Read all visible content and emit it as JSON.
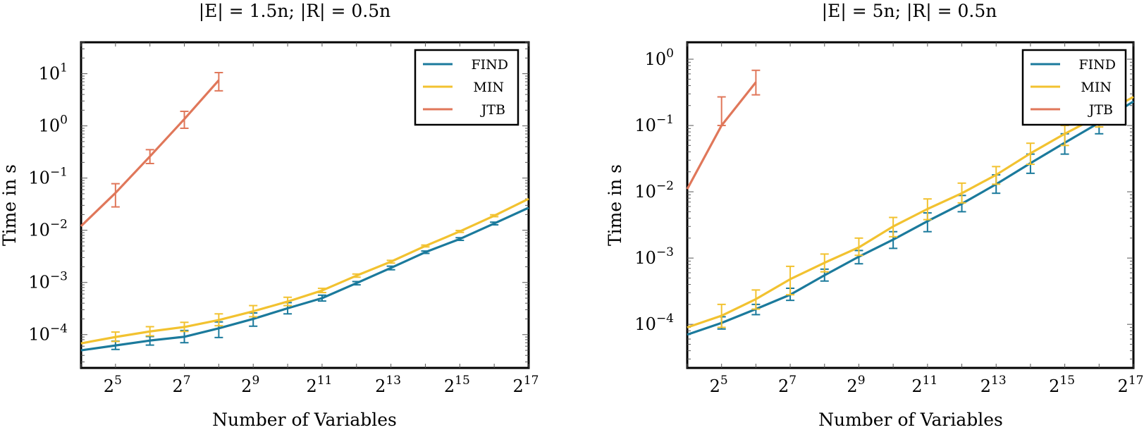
{
  "colors": {
    "FIND": "#1b7a9c",
    "MIN": "#f2c230",
    "JTB": "#e0775a"
  },
  "chart_data": [
    {
      "type": "line",
      "title": "|E| = 1.5n; |R| = 0.5n",
      "xlabel": "Number of Variables",
      "ylabel": "Time in s",
      "x_scale": "log2",
      "y_scale": "log10",
      "xlim_exp": [
        4,
        17
      ],
      "ylim": [
        2.3e-05,
        40
      ],
      "xticks_exp": [
        5,
        7,
        9,
        11,
        13,
        15,
        17
      ],
      "yticks": [
        {
          "exp": -4,
          "value": 0.0001
        },
        {
          "exp": -3,
          "value": 0.001
        },
        {
          "exp": -2,
          "value": 0.01
        },
        {
          "exp": -1,
          "value": 0.1
        },
        {
          "exp": 0,
          "value": 1
        },
        {
          "exp": 1,
          "value": 10
        }
      ],
      "legend": [
        "FIND",
        "MIN",
        "JTB"
      ],
      "legend_position": "top-right",
      "series": [
        {
          "name": "FIND",
          "x_exp": [
            4,
            5,
            6,
            7,
            8,
            9,
            10,
            11,
            12,
            13,
            14,
            15,
            16,
            17
          ],
          "values": [
            5e-05,
            6.2e-05,
            7.7e-05,
            9.1e-05,
            0.000132,
            0.0002,
            0.00032,
            0.0005,
            0.00097,
            0.0019,
            0.0038,
            0.0068,
            0.0135,
            0.027
          ],
          "err_low": [
            null,
            5.2e-05,
            6.3e-05,
            7e-05,
            8.8e-05,
            0.000145,
            0.00025,
            0.00044,
            0.0009,
            0.00175,
            0.0036,
            0.0064,
            0.0127,
            null
          ],
          "err_high": [
            null,
            7.5e-05,
            9.2e-05,
            0.00012,
            0.000175,
            0.00026,
            0.00041,
            0.00057,
            0.00104,
            0.00205,
            0.004,
            0.0072,
            0.0143,
            null
          ]
        },
        {
          "name": "MIN",
          "x_exp": [
            4,
            5,
            6,
            7,
            8,
            9,
            10,
            11,
            12,
            13,
            14,
            15,
            16,
            17
          ],
          "values": [
            6.8e-05,
            9e-05,
            0.000115,
            0.00014,
            0.00019,
            0.00028,
            0.00043,
            0.0007,
            0.00135,
            0.0025,
            0.005,
            0.0095,
            0.019,
            0.04
          ],
          "err_low": [
            null,
            7.4e-05,
            9.5e-05,
            0.000115,
            0.000148,
            0.00022,
            0.00036,
            0.00064,
            0.00126,
            0.00235,
            0.0048,
            0.0091,
            0.0182,
            null
          ],
          "err_high": [
            null,
            0.000112,
            0.000142,
            0.000172,
            0.00025,
            0.00036,
            0.00052,
            0.00077,
            0.00145,
            0.00265,
            0.0052,
            0.0099,
            0.0198,
            null
          ]
        },
        {
          "name": "JTB",
          "x_exp": [
            4,
            5,
            6,
            7,
            8
          ],
          "values": [
            0.012,
            0.052,
            0.26,
            1.35,
            7.5
          ],
          "err_low": [
            null,
            0.028,
            0.19,
            0.9,
            4.7
          ],
          "err_high": [
            null,
            0.078,
            0.35,
            1.9,
            10.5
          ]
        }
      ]
    },
    {
      "type": "line",
      "title": "|E| = 5n; |R| = 0.5n",
      "xlabel": "Number of Variables",
      "ylabel": "Time in s",
      "x_scale": "log2",
      "y_scale": "log10",
      "xlim_exp": [
        4,
        17
      ],
      "ylim": [
        2.2e-05,
        1.8
      ],
      "xticks_exp": [
        5,
        7,
        9,
        11,
        13,
        15,
        17
      ],
      "yticks": [
        {
          "exp": -4,
          "value": 0.0001
        },
        {
          "exp": -3,
          "value": 0.001
        },
        {
          "exp": -2,
          "value": 0.01
        },
        {
          "exp": -1,
          "value": 0.1
        },
        {
          "exp": 0,
          "value": 1
        }
      ],
      "legend": [
        "FIND",
        "MIN",
        "JTB"
      ],
      "legend_position": "top-right",
      "series": [
        {
          "name": "FIND",
          "x_exp": [
            4,
            5,
            6,
            7,
            8,
            9,
            10,
            11,
            12,
            13,
            14,
            15,
            16,
            17
          ],
          "values": [
            7e-05,
            0.000105,
            0.00017,
            0.00028,
            0.00055,
            0.00105,
            0.0019,
            0.0036,
            0.0066,
            0.013,
            0.027,
            0.055,
            0.11,
            0.23
          ],
          "err_low": [
            null,
            8.5e-05,
            0.00014,
            0.00023,
            0.00045,
            0.00082,
            0.0014,
            0.0025,
            0.005,
            0.0095,
            0.019,
            0.037,
            0.075,
            null
          ],
          "err_high": [
            null,
            0.00013,
            0.0002,
            0.00035,
            0.00068,
            0.0013,
            0.0025,
            0.0048,
            0.0088,
            0.018,
            0.037,
            0.075,
            0.15,
            null
          ]
        },
        {
          "name": "MIN",
          "x_exp": [
            4,
            5,
            6,
            7,
            8,
            9,
            10,
            11,
            12,
            13,
            14,
            15,
            16,
            17
          ],
          "values": [
            9e-05,
            0.000135,
            0.00024,
            0.00048,
            0.00085,
            0.00145,
            0.003,
            0.0055,
            0.0095,
            0.018,
            0.038,
            0.075,
            0.14,
            0.27
          ],
          "err_low": [
            null,
            9e-05,
            0.00017,
            0.00028,
            0.00062,
            0.0011,
            0.0021,
            0.0038,
            0.0068,
            0.013,
            0.026,
            0.05,
            0.095,
            null
          ],
          "err_high": [
            null,
            0.0002,
            0.00033,
            0.00075,
            0.00115,
            0.002,
            0.0041,
            0.0078,
            0.0135,
            0.024,
            0.054,
            0.1,
            0.18,
            null
          ]
        },
        {
          "name": "JTB",
          "x_exp": [
            4,
            5,
            6
          ],
          "values": [
            0.011,
            0.1,
            0.45
          ],
          "err_low": [
            null,
            0.1,
            0.29
          ],
          "err_high": [
            null,
            0.27,
            0.68
          ]
        }
      ]
    }
  ]
}
